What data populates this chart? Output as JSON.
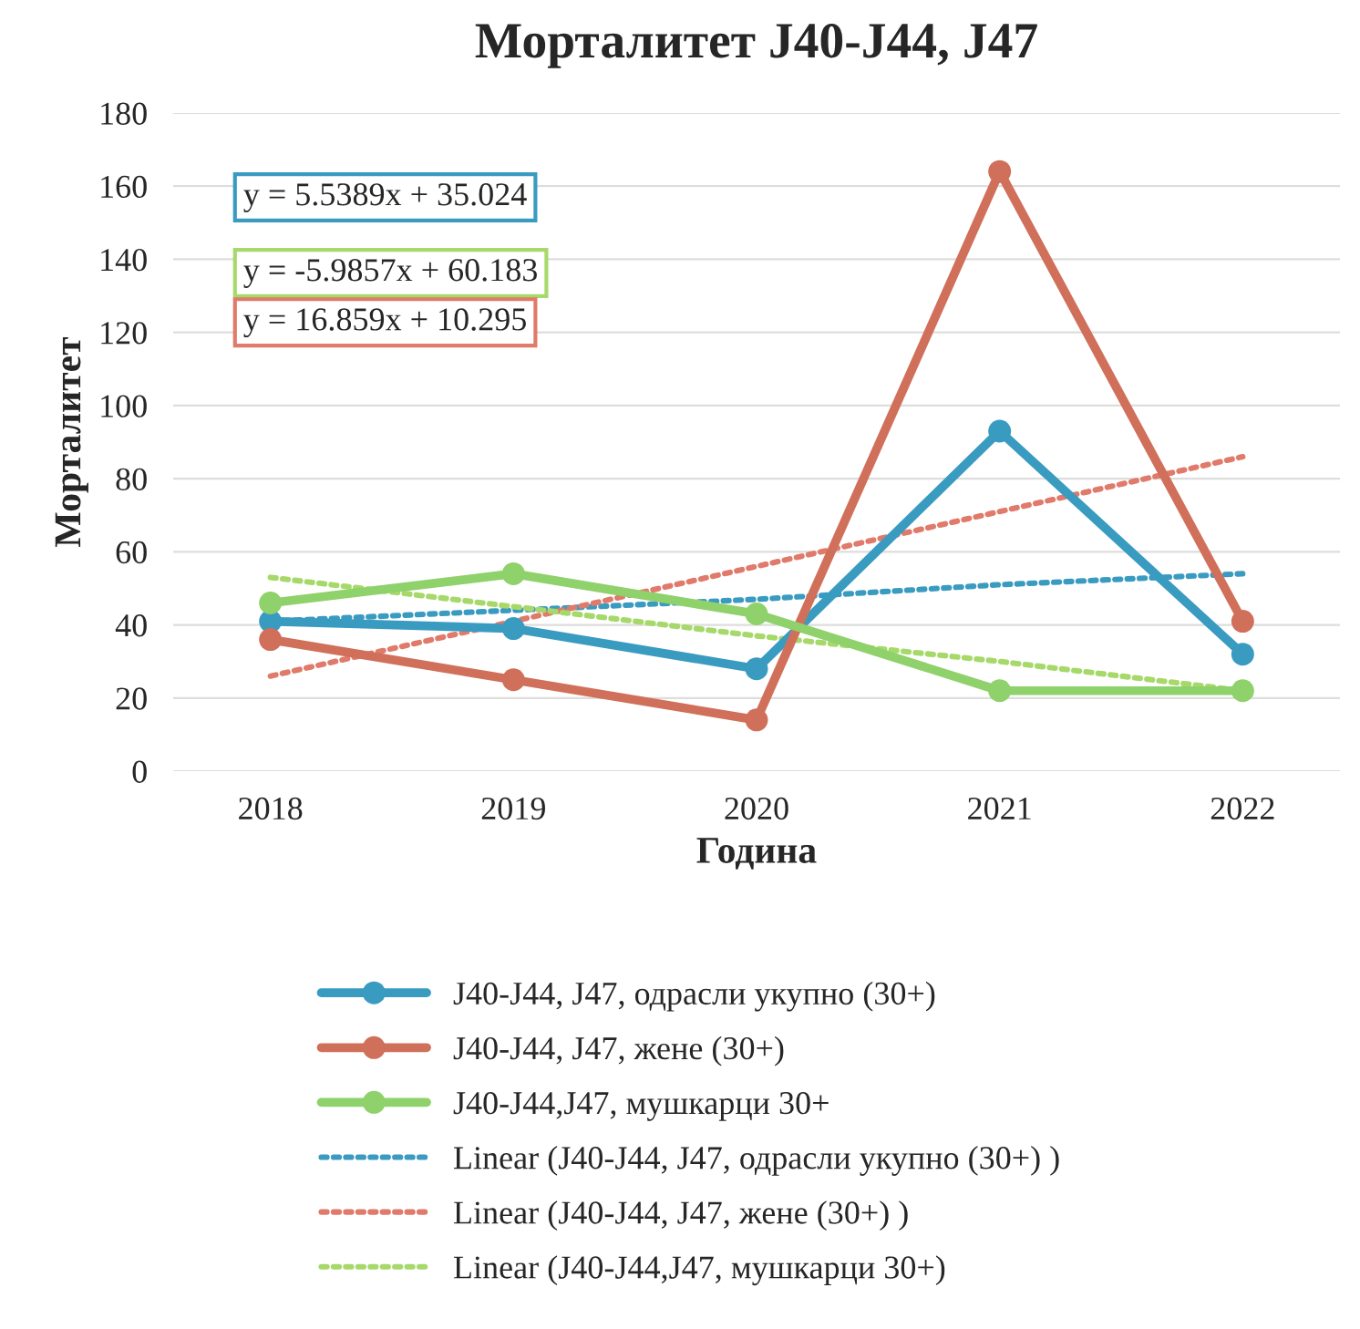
{
  "chart_data": {
    "type": "line",
    "title": "Морталитет J40-J44, J47",
    "xlabel": "Година",
    "ylabel": "Морталитет",
    "x": [
      2018,
      2019,
      2020,
      2021,
      2022
    ],
    "xlim": [
      2017.6,
      2022.4
    ],
    "xticks": [
      2018,
      2019,
      2020,
      2021,
      2022
    ],
    "ylim": [
      0,
      180
    ],
    "yticks": [
      0,
      20,
      40,
      60,
      80,
      100,
      120,
      140,
      160,
      180
    ],
    "grid": "y",
    "legend": "bottom",
    "marker": "circle",
    "series": [
      {
        "name": "J40-J44, J47, одрасли укупно (30+)",
        "color": "#3a9bc1",
        "values": [
          41,
          39,
          28,
          93,
          32
        ]
      },
      {
        "name": "J40-J44, J47, жене (30+)",
        "color": "#d0705a",
        "values": [
          36,
          25,
          14,
          164,
          41
        ]
      },
      {
        "name": "J40-J44,J47, мушкарци 30+",
        "color": "#8fd16a",
        "values": [
          46,
          54,
          43,
          22,
          22
        ]
      },
      {
        "name": "Linear (J40-J44, J47, одрасли укупно (30+) )",
        "color": "#3a9bc1",
        "type": "line",
        "line_style": "dotted",
        "marker": "none",
        "values": [
          41,
          44,
          47,
          51,
          54
        ]
      },
      {
        "name": "Linear (J40-J44, J47, жене (30+) )",
        "color": "#e07a6a",
        "type": "line",
        "line_style": "dotted",
        "marker": "none",
        "values": [
          26,
          41,
          56,
          71,
          86
        ]
      },
      {
        "name": "Linear (J40-J44,J47, мушкарци 30+)",
        "color": "#a6d96a",
        "type": "line",
        "line_style": "dotted",
        "marker": "none",
        "values": [
          53,
          45,
          37,
          30,
          22
        ]
      }
    ],
    "annotations": [
      "y = 5.5389x + 35.024",
      "y = -5.9857x + 60.183",
      "y = 16.859x + 10.295"
    ]
  }
}
